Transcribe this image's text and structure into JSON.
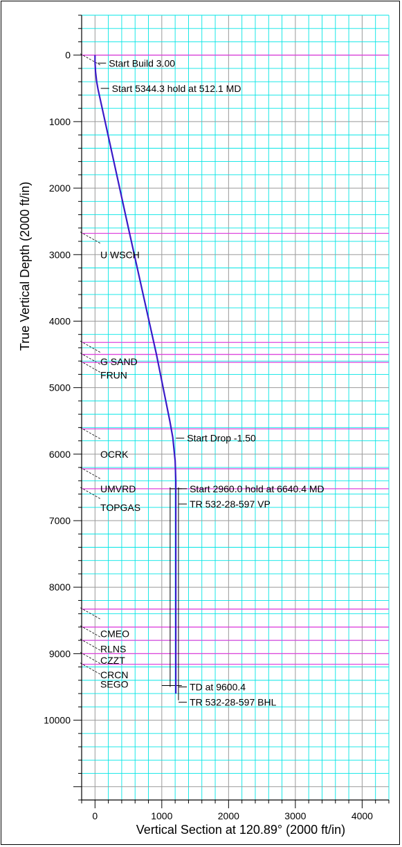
{
  "chart_data": {
    "type": "line",
    "xlabel": "Vertical Section at 120.89° (2000 ft/in)",
    "ylabel": "True Vertical Depth (2000 ft/in)",
    "xlim": [
      -200,
      4400
    ],
    "ylim": [
      -600,
      11200
    ],
    "y_inverted": true,
    "x_ticks": [
      0,
      1000,
      2000,
      3000,
      4000
    ],
    "y_ticks": [
      0,
      1000,
      2000,
      3000,
      4000,
      5000,
      6000,
      7000,
      8000,
      9000,
      10000
    ],
    "grid": true,
    "grid_minor_step": 200,
    "colors": {
      "grid_minor": "#00e5e5",
      "grid_major": "#999999",
      "formation": "#dd44dd",
      "wellpath": "#3a1ac8",
      "plan": "#000000",
      "axis": "#000000"
    },
    "series": [
      {
        "style": "wellpath",
        "points": [
          [
            0,
            0
          ],
          [
            0,
            100
          ],
          [
            8,
            250
          ],
          [
            25,
            400
          ],
          [
            45,
            512
          ],
          [
            500,
            2600
          ],
          [
            920,
            4500
          ],
          [
            1120,
            5500
          ],
          [
            1165,
            5750
          ],
          [
            1200,
            6100
          ],
          [
            1210,
            6400
          ],
          [
            1210,
            9600
          ]
        ]
      }
    ],
    "plan_lines": [
      {
        "points": [
          [
            1125,
            6500
          ],
          [
            1125,
            9500
          ]
        ]
      },
      {
        "points": [
          [
            1250,
            6500
          ],
          [
            1250,
            9700
          ]
        ]
      }
    ],
    "formations": [
      {
        "tvd": 0,
        "label": ""
      },
      {
        "tvd": 2680,
        "label": "U WSCH"
      },
      {
        "tvd": 4320,
        "label": ""
      },
      {
        "tvd": 4500,
        "label": "G SAND"
      },
      {
        "tvd": 4620,
        "label": "FRUN"
      },
      {
        "tvd": 5620,
        "label": ""
      },
      {
        "tvd": 6220,
        "label": "OCRK"
      },
      {
        "tvd": 6520,
        "label": "UMVRD"
      },
      {
        "tvd": 8330,
        "label": "TOPGAS"
      },
      {
        "tvd": 8600,
        "label": "CMEO"
      },
      {
        "tvd": 8800,
        "label": "RLNS"
      },
      {
        "tvd": 9000,
        "label": "CZZT"
      },
      {
        "tvd": 9160,
        "label": "CRCN"
      }
    ],
    "formation_labels_pos": [
      {
        "label": "U WSCH",
        "tvd": 3000
      },
      {
        "label": "G SAND",
        "tvd": 4610
      },
      {
        "label": "FRUN",
        "tvd": 4810
      },
      {
        "label": "OCRK",
        "tvd": 6000
      },
      {
        "label": "UMVRD",
        "tvd": 6520
      },
      {
        "label": "TOPGAS",
        "tvd": 6800
      },
      {
        "label": "CMEO",
        "tvd": 8700
      },
      {
        "label": "RLNS",
        "tvd": 8930
      },
      {
        "label": "CZZT",
        "tvd": 9100
      },
      {
        "label": "CRCN",
        "tvd": 9320
      },
      {
        "label": "SEGO",
        "tvd": 9460
      }
    ],
    "annotations": [
      {
        "text": "Start Build 3.00",
        "x": 0,
        "y": 120
      },
      {
        "text": "Start 5344.3 hold at 512.1 MD",
        "x": 45,
        "y": 500
      },
      {
        "text": "Start Drop -1.50",
        "x": 1170,
        "y": 5760
      },
      {
        "text": "Start 2960.0 hold at 6640.4 MD",
        "x": 1210,
        "y": 6520
      },
      {
        "text": "TR 532-28-597 VP",
        "x": 1210,
        "y": 6750
      },
      {
        "text": "TD at 9600.4",
        "x": 1210,
        "y": 9500
      },
      {
        "text": "TR 532-28-597 BHL",
        "x": 1210,
        "y": 9730
      }
    ]
  }
}
